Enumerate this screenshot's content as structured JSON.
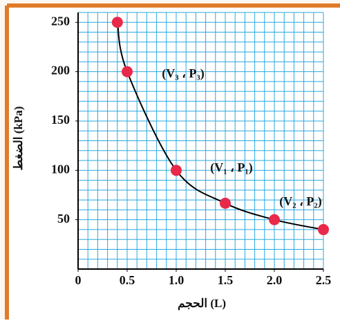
{
  "chart_data": {
    "type": "scatter",
    "x_label": "الحجم (L)",
    "y_label": "الضغط (kPa)",
    "x": [
      0.4,
      0.5,
      1.0,
      1.5,
      2.0,
      2.5
    ],
    "y": [
      250,
      200,
      100,
      66.7,
      50,
      40
    ],
    "color": "#e8294a",
    "line_color": "#000000",
    "smooth_line": true,
    "xlim": [
      0,
      2.5
    ],
    "ylim": [
      0,
      260
    ],
    "xticks": [
      0,
      0.5,
      {
        "value": 1,
        "label": "1.0"
      },
      1.5,
      {
        "value": 2,
        "label": "2.0"
      },
      2.5
    ],
    "yticks": [
      50,
      100,
      150,
      200,
      250
    ],
    "grid": true,
    "grid_color": "#29a8e0",
    "minor_grid": {
      "x": 0.1,
      "y": 10
    },
    "annotations": [
      "(V₃ ، P₃)",
      "(V₁ ، P₁)",
      "(V₂ ، P₂)"
    ]
  }
}
